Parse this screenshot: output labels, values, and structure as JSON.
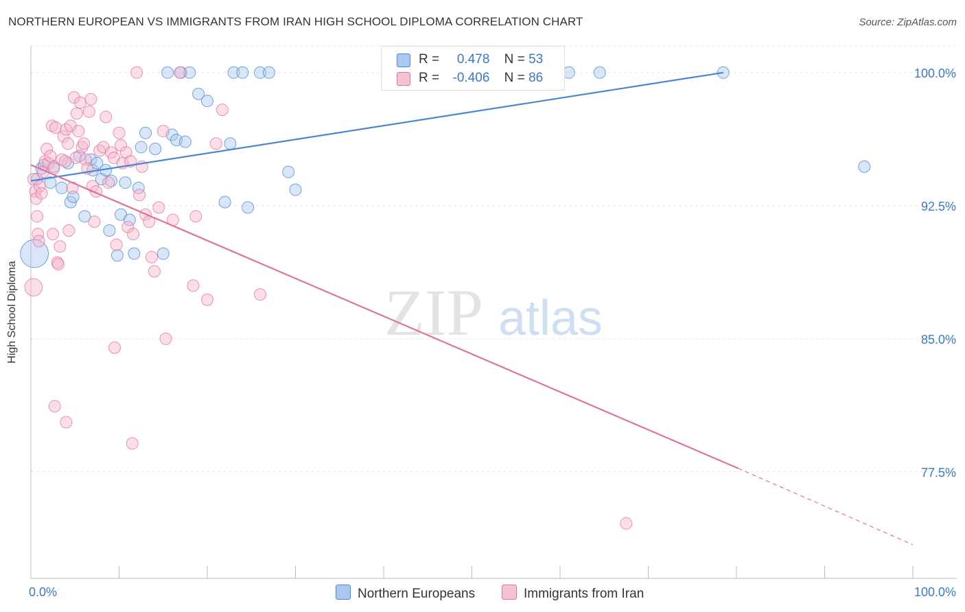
{
  "title": "NORTHERN EUROPEAN VS IMMIGRANTS FROM IRAN HIGH SCHOOL DIPLOMA CORRELATION CHART",
  "source": "Source: ZipAtlas.com",
  "watermark": {
    "zip": "ZIP",
    "atlas": "atlas"
  },
  "chart_data": {
    "type": "scatter",
    "title": "NORTHERN EUROPEAN VS IMMIGRANTS FROM IRAN HIGH SCHOOL DIPLOMA CORRELATION CHART",
    "ylabel": "High School Diploma",
    "xlim": [
      0,
      100
    ],
    "ylim": [
      71.5,
      101.5
    ],
    "x_tick_labels": [
      "0.0%",
      "100.0%"
    ],
    "y_ticks": [
      77.5,
      85.0,
      92.5,
      100.0
    ],
    "y_tick_labels": [
      "77.5%",
      "85.0%",
      "92.5%",
      "100.0%"
    ],
    "grid": true,
    "legend": {
      "placement": "top-center",
      "rows": [
        {
          "r_label": "R =",
          "r_value": "0.478",
          "n_label": "N =",
          "n_value": "53"
        },
        {
          "r_label": "R =",
          "r_value": "-0.406",
          "n_label": "N =",
          "n_value": "86"
        }
      ]
    },
    "colors": {
      "blue": "#4a86d6",
      "blue_fill": "#a9c8f0",
      "pink": "#e2719a",
      "pink_fill": "#f6b6cb"
    },
    "series": [
      {
        "name": "Northern Europeans",
        "color": "#4a86d6",
        "trend": {
          "x": [
            0,
            78.5
          ],
          "y": [
            93.9,
            100.0
          ]
        },
        "points": [
          {
            "x": 0.7,
            "y": 94.0,
            "s": 1
          },
          {
            "x": 1.2,
            "y": 94.6,
            "s": 1
          },
          {
            "x": 1.5,
            "y": 94.8,
            "s": 1
          },
          {
            "x": 2.2,
            "y": 93.8,
            "s": 1
          },
          {
            "x": 2.6,
            "y": 94.7,
            "s": 1
          },
          {
            "x": 3.5,
            "y": 93.5,
            "s": 1
          },
          {
            "x": 4.2,
            "y": 94.9,
            "s": 1
          },
          {
            "x": 4.5,
            "y": 92.7,
            "s": 1
          },
          {
            "x": 4.8,
            "y": 93.0,
            "s": 1
          },
          {
            "x": 5.5,
            "y": 95.3,
            "s": 1
          },
          {
            "x": 6.1,
            "y": 91.9,
            "s": 1
          },
          {
            "x": 6.8,
            "y": 95.1,
            "s": 1
          },
          {
            "x": 7.0,
            "y": 94.5,
            "s": 1
          },
          {
            "x": 7.5,
            "y": 94.9,
            "s": 1
          },
          {
            "x": 8.0,
            "y": 94.0,
            "s": 1
          },
          {
            "x": 8.5,
            "y": 94.5,
            "s": 1
          },
          {
            "x": 8.9,
            "y": 91.1,
            "s": 1
          },
          {
            "x": 9.1,
            "y": 93.9,
            "s": 1
          },
          {
            "x": 9.8,
            "y": 89.7,
            "s": 1
          },
          {
            "x": 10.2,
            "y": 92.0,
            "s": 1
          },
          {
            "x": 10.7,
            "y": 93.8,
            "s": 1
          },
          {
            "x": 11.2,
            "y": 91.7,
            "s": 1
          },
          {
            "x": 11.7,
            "y": 89.8,
            "s": 1
          },
          {
            "x": 12.2,
            "y": 93.5,
            "s": 1
          },
          {
            "x": 12.5,
            "y": 95.8,
            "s": 1
          },
          {
            "x": 13.0,
            "y": 96.6,
            "s": 1
          },
          {
            "x": 14.1,
            "y": 95.7,
            "s": 1
          },
          {
            "x": 15.0,
            "y": 89.8,
            "s": 1
          },
          {
            "x": 15.5,
            "y": 100.0,
            "s": 1
          },
          {
            "x": 16.0,
            "y": 96.5,
            "s": 1
          },
          {
            "x": 16.5,
            "y": 96.2,
            "s": 1
          },
          {
            "x": 17.0,
            "y": 100.0,
            "s": 1
          },
          {
            "x": 17.5,
            "y": 96.1,
            "s": 1
          },
          {
            "x": 18.0,
            "y": 100.0,
            "s": 1
          },
          {
            "x": 19.0,
            "y": 98.8,
            "s": 1
          },
          {
            "x": 20.0,
            "y": 98.4,
            "s": 1
          },
          {
            "x": 22.0,
            "y": 92.7,
            "s": 1
          },
          {
            "x": 22.6,
            "y": 96.0,
            "s": 1
          },
          {
            "x": 23.0,
            "y": 100.0,
            "s": 1
          },
          {
            "x": 24.0,
            "y": 100.0,
            "s": 1
          },
          {
            "x": 24.6,
            "y": 92.4,
            "s": 1
          },
          {
            "x": 26.0,
            "y": 100.0,
            "s": 1
          },
          {
            "x": 27.0,
            "y": 100.0,
            "s": 1
          },
          {
            "x": 29.2,
            "y": 94.4,
            "s": 1
          },
          {
            "x": 30.0,
            "y": 93.4,
            "s": 1
          },
          {
            "x": 41.0,
            "y": 100.0,
            "s": 1
          },
          {
            "x": 61.0,
            "y": 100.0,
            "s": 1
          },
          {
            "x": 64.5,
            "y": 100.0,
            "s": 1
          },
          {
            "x": 78.5,
            "y": 100.0,
            "s": 1
          },
          {
            "x": 94.5,
            "y": 94.7,
            "s": 1
          },
          {
            "x": 0.4,
            "y": 89.8,
            "s": 2.4
          }
        ]
      },
      {
        "name": "Immigrants from Iran",
        "color": "#e2719a",
        "trend": {
          "x": [
            0,
            80.2
          ],
          "y": [
            94.8,
            77.7
          ]
        },
        "trend_dashed": {
          "x": [
            80.2,
            100
          ],
          "y": [
            77.7,
            73.4
          ]
        },
        "points": [
          {
            "x": 0.3,
            "y": 94.0,
            "s": 1
          },
          {
            "x": 0.5,
            "y": 93.3,
            "s": 1
          },
          {
            "x": 0.6,
            "y": 92.9,
            "s": 1
          },
          {
            "x": 0.7,
            "y": 91.9,
            "s": 1
          },
          {
            "x": 0.8,
            "y": 90.9,
            "s": 1
          },
          {
            "x": 0.9,
            "y": 90.5,
            "s": 1
          },
          {
            "x": 1.0,
            "y": 93.6,
            "s": 1
          },
          {
            "x": 1.2,
            "y": 93.2,
            "s": 1
          },
          {
            "x": 1.4,
            "y": 94.4,
            "s": 1
          },
          {
            "x": 1.6,
            "y": 95.0,
            "s": 1
          },
          {
            "x": 1.8,
            "y": 95.7,
            "s": 1
          },
          {
            "x": 2.0,
            "y": 94.9,
            "s": 1
          },
          {
            "x": 2.2,
            "y": 95.3,
            "s": 1
          },
          {
            "x": 2.4,
            "y": 97.0,
            "s": 1
          },
          {
            "x": 2.5,
            "y": 90.9,
            "s": 1
          },
          {
            "x": 2.6,
            "y": 94.6,
            "s": 1
          },
          {
            "x": 2.8,
            "y": 96.9,
            "s": 1
          },
          {
            "x": 3.0,
            "y": 89.3,
            "s": 1
          },
          {
            "x": 3.1,
            "y": 89.2,
            "s": 1
          },
          {
            "x": 3.3,
            "y": 90.2,
            "s": 1
          },
          {
            "x": 3.5,
            "y": 95.1,
            "s": 1
          },
          {
            "x": 3.7,
            "y": 96.4,
            "s": 1
          },
          {
            "x": 3.9,
            "y": 95.0,
            "s": 1
          },
          {
            "x": 4.0,
            "y": 96.8,
            "s": 1
          },
          {
            "x": 4.2,
            "y": 96.0,
            "s": 1
          },
          {
            "x": 4.3,
            "y": 91.1,
            "s": 1
          },
          {
            "x": 4.5,
            "y": 97.0,
            "s": 1
          },
          {
            "x": 4.7,
            "y": 93.5,
            "s": 1
          },
          {
            "x": 4.9,
            "y": 98.6,
            "s": 1
          },
          {
            "x": 5.1,
            "y": 95.2,
            "s": 1
          },
          {
            "x": 5.2,
            "y": 97.7,
            "s": 1
          },
          {
            "x": 5.4,
            "y": 96.7,
            "s": 1
          },
          {
            "x": 5.6,
            "y": 98.3,
            "s": 1
          },
          {
            "x": 5.8,
            "y": 95.8,
            "s": 1
          },
          {
            "x": 6.0,
            "y": 96.0,
            "s": 1
          },
          {
            "x": 6.2,
            "y": 95.1,
            "s": 1
          },
          {
            "x": 6.4,
            "y": 94.6,
            "s": 1
          },
          {
            "x": 6.6,
            "y": 97.8,
            "s": 1
          },
          {
            "x": 6.8,
            "y": 98.5,
            "s": 1
          },
          {
            "x": 7.0,
            "y": 93.6,
            "s": 1
          },
          {
            "x": 7.2,
            "y": 91.6,
            "s": 1
          },
          {
            "x": 7.4,
            "y": 93.3,
            "s": 1
          },
          {
            "x": 7.8,
            "y": 95.6,
            "s": 1
          },
          {
            "x": 8.2,
            "y": 95.8,
            "s": 1
          },
          {
            "x": 8.5,
            "y": 97.5,
            "s": 1
          },
          {
            "x": 8.8,
            "y": 93.8,
            "s": 1
          },
          {
            "x": 9.1,
            "y": 95.5,
            "s": 1
          },
          {
            "x": 9.4,
            "y": 95.2,
            "s": 1
          },
          {
            "x": 9.7,
            "y": 90.3,
            "s": 1
          },
          {
            "x": 10.0,
            "y": 96.6,
            "s": 1
          },
          {
            "x": 10.2,
            "y": 95.9,
            "s": 1
          },
          {
            "x": 10.4,
            "y": 94.9,
            "s": 1
          },
          {
            "x": 10.8,
            "y": 95.5,
            "s": 1
          },
          {
            "x": 11.0,
            "y": 91.3,
            "s": 1
          },
          {
            "x": 11.3,
            "y": 95.0,
            "s": 1
          },
          {
            "x": 11.6,
            "y": 90.9,
            "s": 1
          },
          {
            "x": 12.0,
            "y": 100.0,
            "s": 1
          },
          {
            "x": 12.3,
            "y": 93.1,
            "s": 1
          },
          {
            "x": 12.6,
            "y": 94.7,
            "s": 1
          },
          {
            "x": 13.0,
            "y": 92.0,
            "s": 1
          },
          {
            "x": 13.4,
            "y": 91.6,
            "s": 1
          },
          {
            "x": 13.7,
            "y": 89.6,
            "s": 1
          },
          {
            "x": 14.0,
            "y": 88.8,
            "s": 1
          },
          {
            "x": 14.5,
            "y": 92.4,
            "s": 1
          },
          {
            "x": 15.0,
            "y": 96.7,
            "s": 1
          },
          {
            "x": 15.3,
            "y": 85.0,
            "s": 1
          },
          {
            "x": 16.1,
            "y": 91.7,
            "s": 1
          },
          {
            "x": 16.9,
            "y": 100.0,
            "s": 1
          },
          {
            "x": 18.4,
            "y": 88.0,
            "s": 1
          },
          {
            "x": 18.7,
            "y": 91.9,
            "s": 1
          },
          {
            "x": 20.0,
            "y": 87.2,
            "s": 1
          },
          {
            "x": 21.0,
            "y": 96.0,
            "s": 1
          },
          {
            "x": 21.7,
            "y": 97.9,
            "s": 1
          },
          {
            "x": 26.0,
            "y": 87.5,
            "s": 1
          },
          {
            "x": 2.7,
            "y": 81.2,
            "s": 1
          },
          {
            "x": 4.0,
            "y": 80.3,
            "s": 1
          },
          {
            "x": 9.5,
            "y": 84.5,
            "s": 1
          },
          {
            "x": 11.5,
            "y": 79.1,
            "s": 1
          },
          {
            "x": 67.5,
            "y": 74.6,
            "s": 1
          },
          {
            "x": 0.3,
            "y": 87.9,
            "s": 1.5
          }
        ]
      }
    ]
  }
}
